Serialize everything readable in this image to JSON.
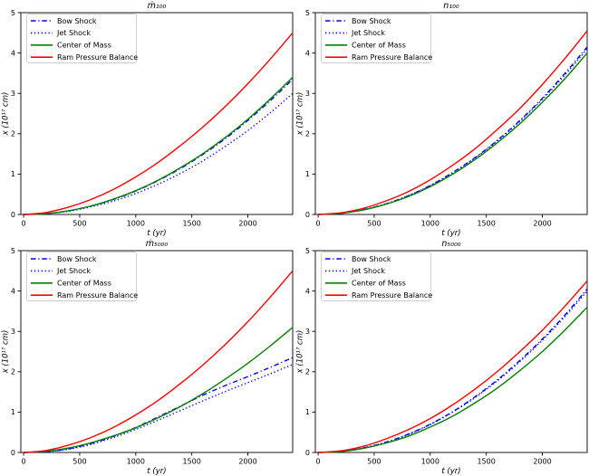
{
  "figure": {
    "background": "#ffffff",
    "xlabel": "t (yr)",
    "ylabel": "x (10¹⁷ cm)"
  },
  "colors": {
    "bow_shock": "#0000ff",
    "jet_shock": "#0000ff",
    "center_of_mass": "#008000",
    "ram_pressure_balance": "#ff0000",
    "axis": "#000000",
    "legend_border": "#cccccc",
    "legend_background": "#ffffff"
  },
  "legend": {
    "position": "upper left",
    "entries": [
      {
        "label": "Bow Shock",
        "color": "#0000ff",
        "style": "dashdot"
      },
      {
        "label": "Jet Shock",
        "color": "#0000ff",
        "style": "dotted"
      },
      {
        "label": "Center of Mass",
        "color": "#008000",
        "style": "solid"
      },
      {
        "label": "Ram Pressure Balance",
        "color": "#ff0000",
        "style": "solid"
      }
    ]
  },
  "chart_data": [
    {
      "type": "line",
      "id": "mdot100",
      "title": "ṁ₁₀₀",
      "xlabel": "t (yr)",
      "ylabel": "x (10¹⁷ cm)",
      "xlim": [
        -25,
        2400
      ],
      "ylim": [
        0,
        5
      ],
      "xticks": [
        0,
        500,
        1000,
        1500,
        2000
      ],
      "yticks": [
        0,
        1,
        2,
        3,
        4,
        5
      ],
      "grid": false,
      "x": [
        0,
        200,
        400,
        600,
        800,
        1000,
        1200,
        1400,
        1600,
        1800,
        2000,
        2200,
        2400
      ],
      "series": [
        {
          "name": "Bow Shock",
          "color": "#0000ff",
          "style": "dashdot",
          "values": [
            0,
            0.02,
            0.09,
            0.21,
            0.37,
            0.58,
            0.84,
            1.14,
            1.49,
            1.88,
            2.33,
            2.82,
            3.35
          ]
        },
        {
          "name": "Jet Shock",
          "color": "#0000ff",
          "style": "dotted",
          "values": [
            0,
            0.02,
            0.08,
            0.19,
            0.33,
            0.52,
            0.75,
            1.02,
            1.33,
            1.69,
            2.08,
            2.52,
            3.0
          ]
        },
        {
          "name": "Center of Mass",
          "color": "#008000",
          "style": "solid",
          "values": [
            0,
            0.02,
            0.09,
            0.21,
            0.38,
            0.59,
            0.85,
            1.16,
            1.51,
            1.91,
            2.36,
            2.86,
            3.4
          ]
        },
        {
          "name": "Ram Pressure Balance",
          "color": "#ff0000",
          "style": "solid",
          "values": [
            0,
            0.05,
            0.18,
            0.37,
            0.62,
            0.93,
            1.29,
            1.71,
            2.17,
            2.68,
            3.24,
            3.85,
            4.5
          ]
        }
      ]
    },
    {
      "type": "line",
      "id": "n100",
      "title": "n₁₀₀",
      "xlabel": "t (yr)",
      "ylabel": "x (10¹⁷ cm)",
      "xlim": [
        -25,
        2400
      ],
      "ylim": [
        0,
        5
      ],
      "xticks": [
        0,
        500,
        1000,
        1500,
        2000
      ],
      "yticks": [
        0,
        1,
        2,
        3,
        4,
        5
      ],
      "grid": false,
      "x": [
        0,
        200,
        400,
        600,
        800,
        1000,
        1200,
        1400,
        1600,
        1800,
        2000,
        2200,
        2400
      ],
      "series": [
        {
          "name": "Bow Shock",
          "color": "#0000ff",
          "style": "dashdot",
          "values": [
            0,
            0.03,
            0.12,
            0.26,
            0.46,
            0.72,
            1.04,
            1.41,
            1.84,
            2.33,
            2.88,
            3.49,
            4.15
          ]
        },
        {
          "name": "Jet Shock",
          "color": "#0000ff",
          "style": "dotted",
          "values": [
            0,
            0.03,
            0.11,
            0.26,
            0.46,
            0.71,
            1.03,
            1.4,
            1.82,
            2.31,
            2.85,
            3.45,
            4.1
          ]
        },
        {
          "name": "Center of Mass",
          "color": "#008000",
          "style": "solid",
          "values": [
            0,
            0.03,
            0.11,
            0.25,
            0.44,
            0.69,
            1.0,
            1.36,
            1.78,
            2.25,
            2.78,
            3.36,
            4.0
          ]
        },
        {
          "name": "Ram Pressure Balance",
          "color": "#ff0000",
          "style": "solid",
          "values": [
            0,
            0.04,
            0.15,
            0.33,
            0.56,
            0.86,
            1.22,
            1.63,
            2.11,
            2.63,
            3.22,
            3.86,
            4.55
          ]
        }
      ]
    },
    {
      "type": "line",
      "id": "mdot5000",
      "title": "ṁ₅₀₀₀",
      "xlabel": "t (yr)",
      "ylabel": "x (10¹⁷ cm)",
      "xlim": [
        -25,
        2400
      ],
      "ylim": [
        0,
        5
      ],
      "xticks": [
        0,
        500,
        1000,
        1500,
        2000
      ],
      "yticks": [
        0,
        1,
        2,
        3,
        4,
        5
      ],
      "grid": false,
      "x": [
        0,
        200,
        400,
        600,
        800,
        1000,
        1200,
        1400,
        1600,
        1800,
        2000,
        2200,
        2400
      ],
      "series": [
        {
          "name": "Bow Shock",
          "color": "#0000ff",
          "style": "dashdot",
          "values": [
            0,
            0.02,
            0.09,
            0.22,
            0.4,
            0.62,
            0.88,
            1.15,
            1.42,
            1.66,
            1.88,
            2.11,
            2.35
          ]
        },
        {
          "name": "Jet Shock",
          "color": "#0000ff",
          "style": "dotted",
          "values": [
            0,
            0.02,
            0.08,
            0.2,
            0.37,
            0.57,
            0.8,
            1.04,
            1.28,
            1.51,
            1.73,
            1.95,
            2.18
          ]
        },
        {
          "name": "Center of Mass",
          "color": "#008000",
          "style": "solid",
          "values": [
            0,
            0.03,
            0.11,
            0.24,
            0.41,
            0.61,
            0.86,
            1.14,
            1.46,
            1.82,
            2.21,
            2.64,
            3.1
          ]
        },
        {
          "name": "Ram Pressure Balance",
          "color": "#ff0000",
          "style": "solid",
          "values": [
            0,
            0.05,
            0.18,
            0.37,
            0.62,
            0.93,
            1.29,
            1.71,
            2.17,
            2.68,
            3.24,
            3.85,
            4.5
          ]
        }
      ]
    },
    {
      "type": "line",
      "id": "n5000",
      "title": "n₅₀₀₀",
      "xlabel": "t (yr)",
      "ylabel": "x (10¹⁷ cm)",
      "xlim": [
        -25,
        2400
      ],
      "ylim": [
        0,
        5
      ],
      "xticks": [
        0,
        500,
        1000,
        1500,
        2000
      ],
      "yticks": [
        0,
        1,
        2,
        3,
        4,
        5
      ],
      "grid": false,
      "x": [
        0,
        200,
        400,
        600,
        800,
        1000,
        1200,
        1400,
        1600,
        1800,
        2000,
        2200,
        2400
      ],
      "series": [
        {
          "name": "Bow Shock",
          "color": "#0000ff",
          "style": "dashdot",
          "values": [
            0,
            0.03,
            0.11,
            0.25,
            0.45,
            0.7,
            1.01,
            1.38,
            1.8,
            2.28,
            2.81,
            3.4,
            4.05
          ]
        },
        {
          "name": "Jet Shock",
          "color": "#0000ff",
          "style": "dotted",
          "values": [
            0,
            0.03,
            0.11,
            0.25,
            0.44,
            0.69,
            1.0,
            1.36,
            1.78,
            2.25,
            2.78,
            3.36,
            4.0
          ]
        },
        {
          "name": "Center of Mass",
          "color": "#008000",
          "style": "solid",
          "values": [
            0,
            0.02,
            0.1,
            0.23,
            0.4,
            0.63,
            0.9,
            1.23,
            1.6,
            2.03,
            2.5,
            3.03,
            3.6
          ]
        },
        {
          "name": "Ram Pressure Balance",
          "color": "#ff0000",
          "style": "solid",
          "values": [
            0,
            0.04,
            0.15,
            0.33,
            0.56,
            0.84,
            1.18,
            1.57,
            2.01,
            2.5,
            3.03,
            3.62,
            4.25
          ]
        }
      ]
    }
  ]
}
